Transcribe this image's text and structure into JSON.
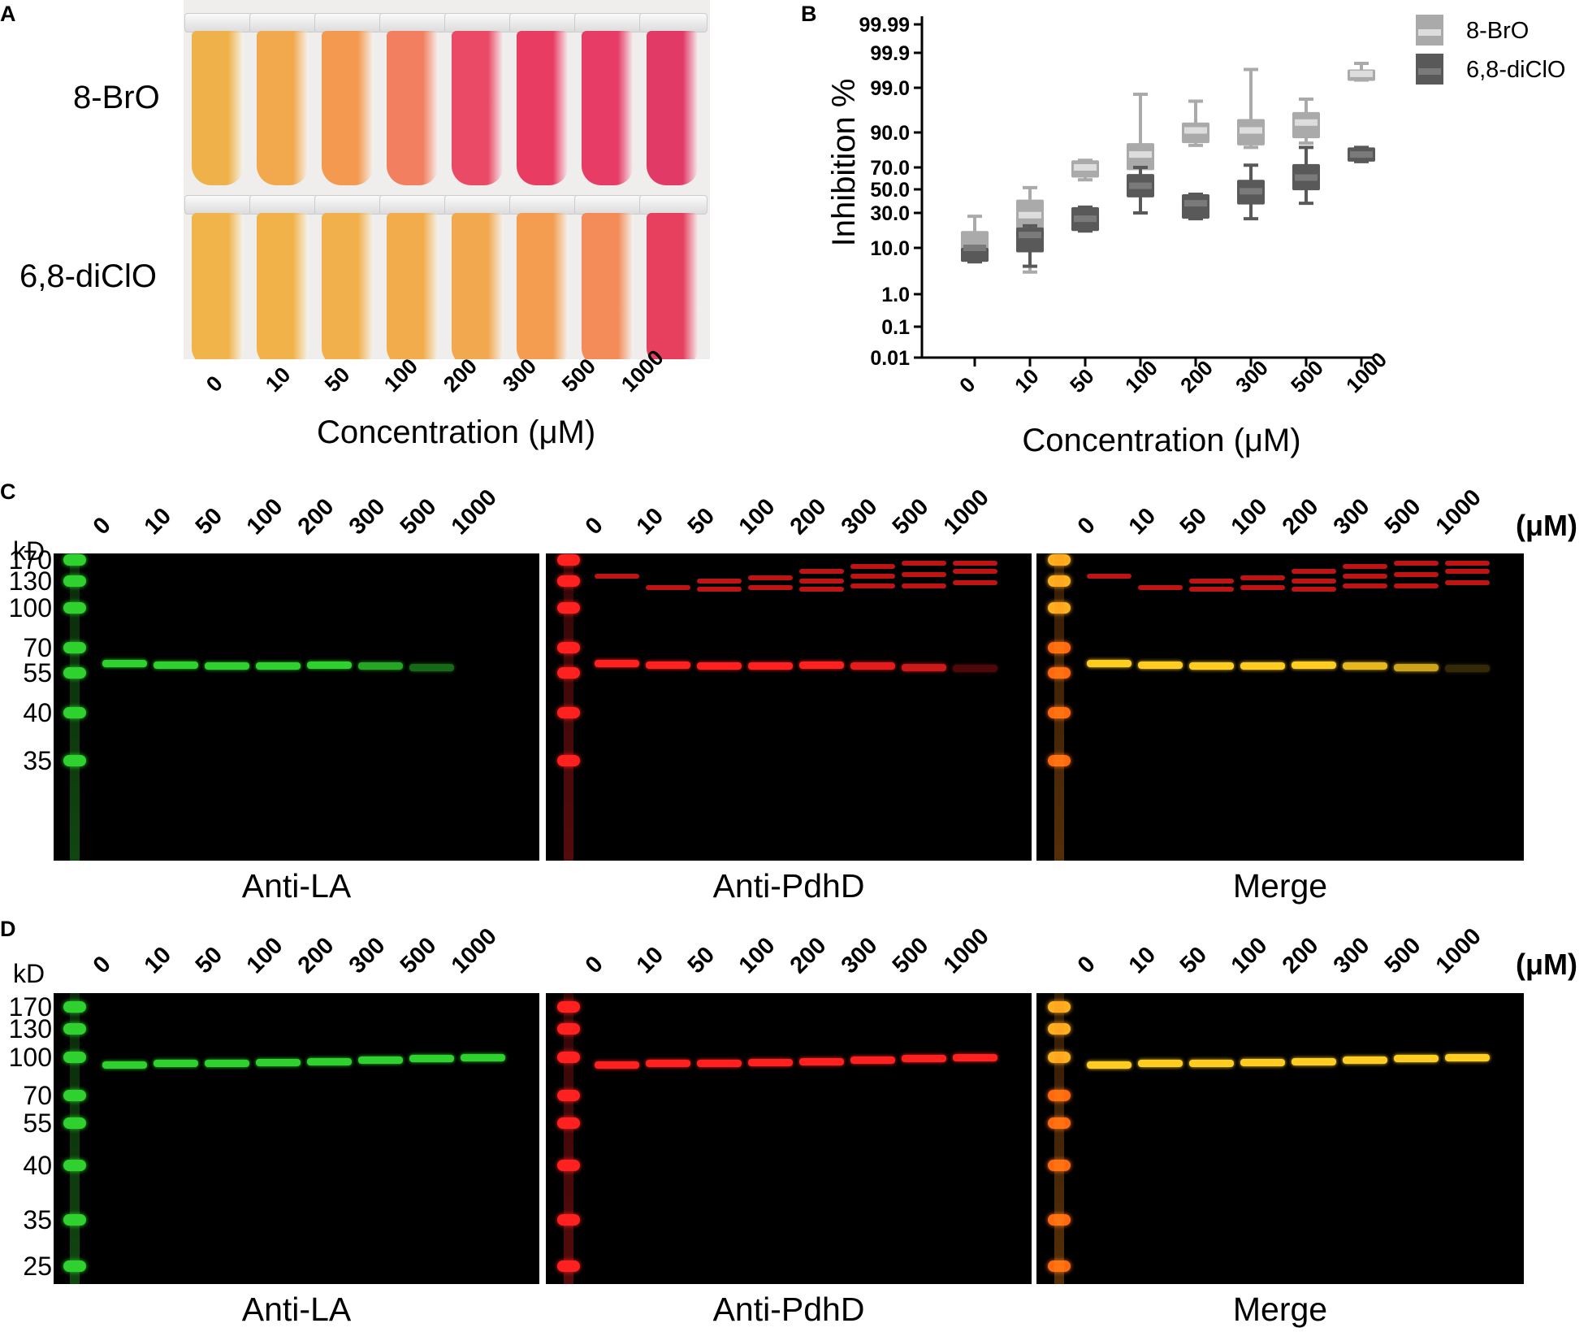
{
  "panels": {
    "A": "A",
    "B": "B",
    "C": "C",
    "D": "D"
  },
  "panelA": {
    "row_labels": [
      "8-BrO",
      "6,8-diClO"
    ],
    "concentrations": [
      "0",
      "10",
      "50",
      "100",
      "200",
      "300",
      "500",
      "1000"
    ],
    "xlabel": "Concentration (μM)",
    "tube_colors_row1": [
      "#efb24a",
      "#f2a84c",
      "#f49a50",
      "#f28060",
      "#ea4a66",
      "#e93c62",
      "#e63c66",
      "#e23a66"
    ],
    "tube_colors_row2": [
      "#f1b44a",
      "#f2b24a",
      "#f2b04c",
      "#f2ac4c",
      "#f2a84e",
      "#f49c50",
      "#f38c58",
      "#e6405e"
    ]
  },
  "chart_data": {
    "type": "box",
    "title": "",
    "xlabel": "Concentration (μM)",
    "ylabel": "Inhibition %",
    "y_scale": "probit",
    "y_ticks": [
      "99.99",
      "99.9",
      "99.0",
      "90.0",
      "70.0",
      "50.0",
      "30.0",
      "10.0",
      "1.0",
      "0.1",
      "0.01"
    ],
    "categories": [
      "0",
      "10",
      "50",
      "100",
      "200",
      "300",
      "500",
      "1000"
    ],
    "legend_position": "top-right",
    "series": [
      {
        "name": "8-BrO",
        "color": "#aaaaaa",
        "median_color": "#dddddd",
        "min": [
          5,
          3,
          60,
          60,
          85,
          84,
          86,
          99.4
        ],
        "q1": [
          5,
          15,
          62,
          68,
          86,
          85,
          88,
          99.4
        ],
        "median": [
          10,
          28,
          70,
          80,
          91,
          91,
          94,
          99.6
        ],
        "q3": [
          17,
          40,
          76,
          86,
          94,
          95,
          96.5,
          99.7
        ],
        "max": [
          27,
          52,
          76,
          98.6,
          98,
          99.7,
          98.2,
          99.8
        ]
      },
      {
        "name": "6,8-diClO",
        "color": "#595959",
        "median_color": "#7a7a7a",
        "min": [
          5,
          4,
          17,
          30,
          25,
          25,
          37,
          75
        ],
        "q1": [
          5,
          8,
          17,
          42,
          25,
          36,
          49,
          75
        ],
        "median": [
          10,
          15,
          25,
          54,
          37,
          48,
          62,
          80
        ],
        "q3": [
          10,
          19,
          34,
          65,
          45,
          60,
          73,
          84
        ],
        "max": [
          10,
          20,
          34,
          70,
          45,
          72,
          84,
          84
        ]
      }
    ]
  },
  "blotC": {
    "unit": "(μM)",
    "kd": "kD",
    "concentrations": [
      "0",
      "10",
      "50",
      "100",
      "200",
      "300",
      "500",
      "1000"
    ],
    "markers": [
      "170",
      "130",
      "100",
      "70",
      "55",
      "40",
      "35"
    ],
    "panel_names": [
      "Anti-LA",
      "Anti-PdhD",
      "Merge"
    ],
    "colors": {
      "la": "#2fd12f",
      "pdhd": "#ff2020",
      "merge": "#ffcc22"
    }
  },
  "blotD": {
    "unit": "(μM)",
    "kd": "kD",
    "concentrations": [
      "0",
      "10",
      "50",
      "100",
      "200",
      "300",
      "500",
      "1000"
    ],
    "markers": [
      "170",
      "130",
      "100",
      "70",
      "55",
      "40",
      "35",
      "25"
    ],
    "panel_names": [
      "Anti-LA",
      "Anti-PdhD",
      "Merge"
    ],
    "colors": {
      "la": "#2fd12f",
      "pdhd": "#ff2020",
      "merge": "#ffcc22"
    }
  }
}
